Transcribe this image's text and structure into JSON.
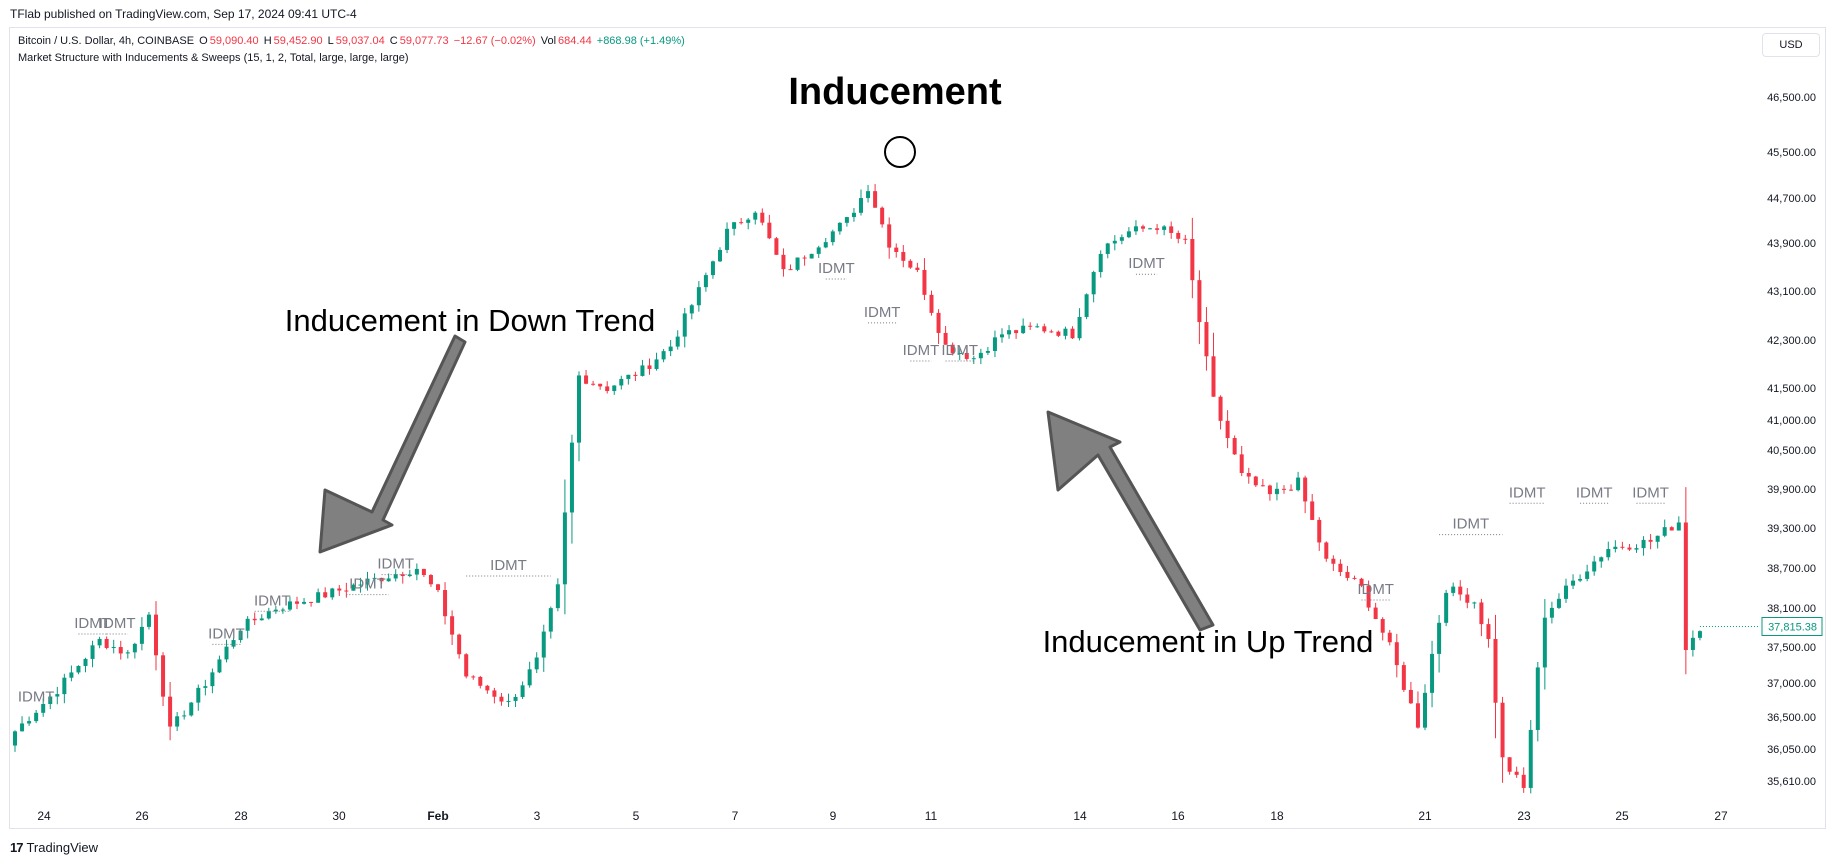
{
  "publisher_line": "TFlab published on TradingView.com, Sep 17, 2024 09:41 UTC-4",
  "symbol": "Bitcoin / U.S. Dollar, 4h, COINBASE",
  "ohlc": {
    "o_label": "O",
    "o": "59,090.40",
    "h_label": "H",
    "h": "59,452.90",
    "l_label": "L",
    "l": "59,037.04",
    "c_label": "C",
    "c": "59,077.73",
    "change": "−12.67 (−0.02%)",
    "vol_label": "Vol",
    "vol": "684.44",
    "vol_change": "+868.98 (+1.49%)"
  },
  "indicator": "Market Structure with Inducements & Sweeps (15, 1, 2, Total, large, large, large)",
  "currency": "USD",
  "footer": {
    "logo": "17",
    "brand": "TradingView"
  },
  "colors": {
    "up": "#089981",
    "down": "#f23645",
    "idmt": "#787b86",
    "arrow": "#808080",
    "price_tag": "#089981"
  },
  "chart_data": {
    "type": "candlestick",
    "title": "Inducement",
    "y_ticks": [
      "46,500.00",
      "45,500.00",
      "44,700.00",
      "43,900.00",
      "43,100.00",
      "42,300.00",
      "41,500.00",
      "41,000.00",
      "40,500.00",
      "39,900.00",
      "39,300.00",
      "38,700.00",
      "38,100.00",
      "37,500.00",
      "37,000.00",
      "36,500.00",
      "36,050.00",
      "35,610.00"
    ],
    "x_ticks": [
      "24",
      "26",
      "28",
      "30",
      "Feb",
      "3",
      "5",
      "7",
      "9",
      "11",
      "14",
      "16",
      "18",
      "21",
      "23",
      "25",
      "27"
    ],
    "last_price": "37,815.38",
    "close_path": [
      {
        "i": 0,
        "p": 36300
      },
      {
        "i": 6,
        "p": 36900
      },
      {
        "i": 12,
        "p": 37600
      },
      {
        "i": 16,
        "p": 37400
      },
      {
        "i": 19,
        "p": 38000
      },
      {
        "i": 22,
        "p": 36300
      },
      {
        "i": 27,
        "p": 37000
      },
      {
        "i": 32,
        "p": 37800
      },
      {
        "i": 37,
        "p": 38100
      },
      {
        "i": 44,
        "p": 38300
      },
      {
        "i": 50,
        "p": 38500
      },
      {
        "i": 57,
        "p": 38700
      },
      {
        "i": 60,
        "p": 38300
      },
      {
        "i": 64,
        "p": 37100
      },
      {
        "i": 70,
        "p": 36700
      },
      {
        "i": 74,
        "p": 37300
      },
      {
        "i": 77,
        "p": 38400
      },
      {
        "i": 80,
        "p": 41700
      },
      {
        "i": 84,
        "p": 41500
      },
      {
        "i": 89,
        "p": 41800
      },
      {
        "i": 93,
        "p": 42200
      },
      {
        "i": 97,
        "p": 43100
      },
      {
        "i": 101,
        "p": 44100
      },
      {
        "i": 105,
        "p": 44500
      },
      {
        "i": 109,
        "p": 43400
      },
      {
        "i": 114,
        "p": 43900
      },
      {
        "i": 118,
        "p": 44300
      },
      {
        "i": 121,
        "p": 44900
      },
      {
        "i": 124,
        "p": 43900
      },
      {
        "i": 128,
        "p": 43400
      },
      {
        "i": 132,
        "p": 42200
      },
      {
        "i": 136,
        "p": 42000
      },
      {
        "i": 140,
        "p": 42400
      },
      {
        "i": 145,
        "p": 42500
      },
      {
        "i": 150,
        "p": 42400
      },
      {
        "i": 154,
        "p": 43800
      },
      {
        "i": 158,
        "p": 44100
      },
      {
        "i": 162,
        "p": 44200
      },
      {
        "i": 166,
        "p": 43900
      },
      {
        "i": 170,
        "p": 41300
      },
      {
        "i": 174,
        "p": 40100
      },
      {
        "i": 178,
        "p": 39800
      },
      {
        "i": 182,
        "p": 40000
      },
      {
        "i": 186,
        "p": 38800
      },
      {
        "i": 191,
        "p": 38400
      },
      {
        "i": 195,
        "p": 37500
      },
      {
        "i": 199,
        "p": 36400
      },
      {
        "i": 203,
        "p": 38400
      },
      {
        "i": 207,
        "p": 38200
      },
      {
        "i": 209,
        "p": 37600
      },
      {
        "i": 211,
        "p": 35900
      },
      {
        "i": 214,
        "p": 35500
      },
      {
        "i": 217,
        "p": 38000
      },
      {
        "i": 221,
        "p": 38500
      },
      {
        "i": 226,
        "p": 39000
      },
      {
        "i": 232,
        "p": 39100
      },
      {
        "i": 236,
        "p": 39400
      },
      {
        "i": 237,
        "p": 37500
      },
      {
        "i": 239,
        "p": 37815
      }
    ],
    "idmt_label": "IDMT",
    "idmt_marks": [
      {
        "i": 3,
        "p": 36640,
        "len": 0
      },
      {
        "i": 9,
        "p": 37700,
        "len": 4
      },
      {
        "i": 13,
        "p": 37700,
        "len": 3
      },
      {
        "i": 28,
        "p": 37540,
        "len": 4
      },
      {
        "i": 34,
        "p": 38050,
        "len": 5
      },
      {
        "i": 47,
        "p": 38300,
        "len": 6
      },
      {
        "i": 52,
        "p": 38600,
        "len": 4
      },
      {
        "i": 64,
        "p": 38580,
        "len": 12
      },
      {
        "i": 115,
        "p": 43300,
        "len": 3
      },
      {
        "i": 121,
        "p": 42580,
        "len": 4
      },
      {
        "i": 127,
        "p": 41950,
        "len": 3
      },
      {
        "i": 132,
        "p": 41950,
        "len": 4
      },
      {
        "i": 159,
        "p": 43380,
        "len": 3
      },
      {
        "i": 191,
        "p": 38220,
        "len": 4
      },
      {
        "i": 202,
        "p": 39200,
        "len": 9
      },
      {
        "i": 212,
        "p": 39680,
        "len": 5
      },
      {
        "i": 222,
        "p": 39680,
        "len": 4
      },
      {
        "i": 230,
        "p": 39680,
        "len": 4
      }
    ],
    "annotations": [
      {
        "text": "Inducement in Down Trend",
        "kind": "label-left"
      },
      {
        "text": "Inducement in Up Trend",
        "kind": "label-right"
      }
    ]
  }
}
